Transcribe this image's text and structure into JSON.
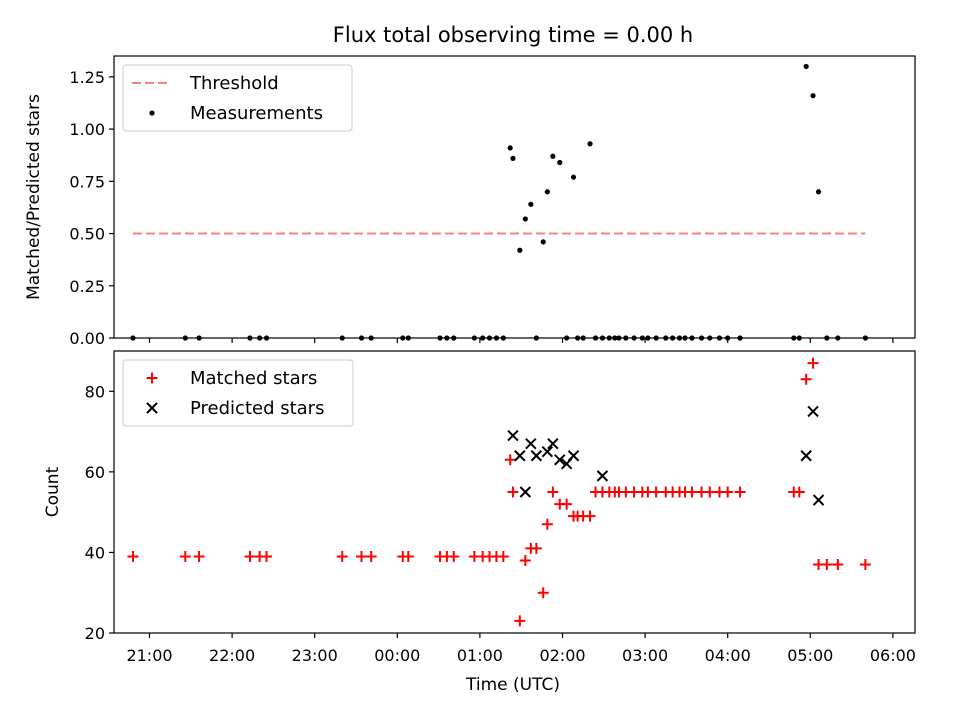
{
  "title": "Flux total observing time = 0.00 h",
  "xlabel": "Time (UTC)",
  "x_ticks": [
    "21:00",
    "22:00",
    "23:00",
    "00:00",
    "01:00",
    "02:00",
    "03:00",
    "04:00",
    "05:00",
    "06:00"
  ],
  "colors": {
    "threshold": "#ff7f7f",
    "measurements": "#000000",
    "matched": "#ff0000",
    "predicted": "#000000"
  },
  "chart_data": [
    {
      "type": "scatter",
      "ylabel": "Matched/Predicted stars",
      "y_ticks": [
        "0.00",
        "0.25",
        "0.50",
        "0.75",
        "1.00",
        "1.25"
      ],
      "ylim": [
        0,
        1.35
      ],
      "xlim": [
        "20:24",
        "06:06"
      ],
      "grid": false,
      "legend_position": "upper-left",
      "threshold": {
        "name": "Threshold",
        "x": [
          "20:48",
          "05:40"
        ],
        "y": 0.5,
        "style": "dashed"
      },
      "series": [
        {
          "name": "Measurements",
          "x": [
            "20:48",
            "21:26",
            "21:36",
            "22:13",
            "22:20",
            "22:25",
            "23:20",
            "23:34",
            "23:41",
            "00:04",
            "00:08",
            "00:31",
            "00:36",
            "00:41",
            "00:56",
            "01:02",
            "01:07",
            "01:12",
            "01:17",
            "01:22",
            "01:24",
            "01:29",
            "01:33",
            "01:37",
            "01:41",
            "01:46",
            "01:49",
            "01:53",
            "01:58",
            "02:03",
            "02:08",
            "02:11",
            "02:15",
            "02:20",
            "02:24",
            "02:29",
            "02:34",
            "02:38",
            "02:41",
            "02:46",
            "02:52",
            "02:58",
            "03:02",
            "03:08",
            "03:15",
            "03:20",
            "03:25",
            "03:29",
            "03:34",
            "03:41",
            "03:47",
            "03:54",
            "04:00",
            "04:09",
            "04:48",
            "04:52",
            "04:57",
            "05:02",
            "05:06",
            "05:12",
            "05:20",
            "05:40"
          ],
          "y": [
            0,
            0,
            0,
            0,
            0,
            0,
            0,
            0,
            0,
            0,
            0,
            0,
            0,
            0,
            0,
            0,
            0,
            0,
            0,
            0.91,
            0.86,
            0.42,
            0.57,
            0.64,
            0,
            0.46,
            0.7,
            0.87,
            0.84,
            0,
            0.77,
            0,
            0,
            0.93,
            0,
            0,
            0,
            0,
            0,
            0,
            0,
            0,
            0,
            0,
            0,
            0,
            0,
            0,
            0,
            0,
            0,
            0,
            0,
            0,
            0,
            0,
            1.3,
            1.16,
            0.7,
            0,
            0,
            0
          ]
        }
      ]
    },
    {
      "type": "scatter",
      "ylabel": "Count",
      "y_ticks": [
        "20",
        "40",
        "60",
        "80"
      ],
      "ylim": [
        20,
        90
      ],
      "xlim": [
        "20:24",
        "06:06"
      ],
      "grid": false,
      "legend_position": "upper-left",
      "series": [
        {
          "name": "Matched stars",
          "marker": "plus",
          "x": [
            "20:48",
            "21:26",
            "21:36",
            "22:13",
            "22:20",
            "22:25",
            "23:20",
            "23:34",
            "23:41",
            "00:04",
            "00:08",
            "00:31",
            "00:36",
            "00:41",
            "00:56",
            "01:02",
            "01:07",
            "01:12",
            "01:17",
            "01:22",
            "01:24",
            "01:29",
            "01:33",
            "01:37",
            "01:41",
            "01:46",
            "01:49",
            "01:53",
            "01:58",
            "02:03",
            "02:08",
            "02:11",
            "02:15",
            "02:20",
            "02:24",
            "02:29",
            "02:34",
            "02:38",
            "02:41",
            "02:46",
            "02:52",
            "02:58",
            "03:02",
            "03:08",
            "03:15",
            "03:20",
            "03:25",
            "03:29",
            "03:34",
            "03:41",
            "03:47",
            "03:54",
            "04:00",
            "04:09",
            "04:48",
            "04:52",
            "04:57",
            "05:02",
            "05:06",
            "05:12",
            "05:20",
            "05:40"
          ],
          "y": [
            39,
            39,
            39,
            39,
            39,
            39,
            39,
            39,
            39,
            39,
            39,
            39,
            39,
            39,
            39,
            39,
            39,
            39,
            39,
            63,
            55,
            23,
            38,
            41,
            41,
            30,
            47,
            55,
            52,
            52,
            49,
            49,
            49,
            49,
            55,
            55,
            55,
            55,
            55,
            55,
            55,
            55,
            55,
            55,
            55,
            55,
            55,
            55,
            55,
            55,
            55,
            55,
            55,
            55,
            55,
            55,
            83,
            87,
            37,
            37,
            37,
            37
          ]
        },
        {
          "name": "Predicted stars",
          "marker": "x",
          "x": [
            "01:24",
            "01:29",
            "01:33",
            "01:37",
            "01:41",
            "01:49",
            "01:53",
            "01:58",
            "02:03",
            "02:08",
            "02:29",
            "04:57",
            "05:02",
            "05:06"
          ],
          "y": [
            69,
            64,
            55,
            67,
            64,
            65,
            67,
            63,
            62,
            64,
            59,
            64,
            75,
            53
          ]
        }
      ]
    }
  ]
}
